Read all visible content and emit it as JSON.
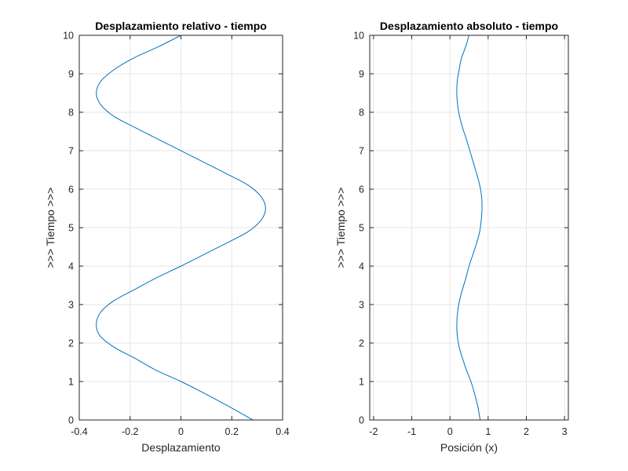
{
  "chart_data": [
    {
      "type": "line",
      "title": "Desplazamiento relativo - tiempo",
      "xlabel": "Desplazamiento",
      "ylabel": ">>> Tiempo >>>",
      "xlim": [
        -0.4,
        0.4
      ],
      "ylim": [
        0,
        10
      ],
      "xticks": [
        -0.4,
        -0.2,
        0,
        0.2,
        0.4
      ],
      "xtick_labels": [
        "-0.4",
        "-0.2",
        "0",
        "0.2",
        "0.4"
      ],
      "yticks": [
        0,
        1,
        2,
        3,
        4,
        5,
        6,
        7,
        8,
        9,
        10
      ],
      "ytick_labels": [
        "0",
        "1",
        "2",
        "3",
        "4",
        "5",
        "6",
        "7",
        "8",
        "9",
        "10"
      ],
      "grid": true,
      "line_color": "#0072BD",
      "series": [
        {
          "x": [
            0.283,
            0.189,
            0.09,
            0.0,
            -0.1,
            -0.18,
            -0.265,
            -0.32,
            -0.333,
            -0.316,
            -0.264,
            -0.18,
            -0.095,
            0.0,
            0.09,
            0.18,
            0.265,
            0.316,
            0.333,
            0.316,
            0.265,
            0.18,
            0.09,
            0.0,
            -0.09,
            -0.18,
            -0.265,
            -0.316,
            -0.333,
            -0.316,
            -0.265,
            -0.189,
            -0.09,
            0.0
          ],
          "y": [
            0.0,
            0.35,
            0.7,
            1.0,
            1.3,
            1.6,
            1.9,
            2.2,
            2.5,
            2.8,
            3.1,
            3.4,
            3.7,
            4.0,
            4.3,
            4.6,
            4.9,
            5.2,
            5.5,
            5.8,
            6.1,
            6.4,
            6.7,
            7.0,
            7.3,
            7.6,
            7.9,
            8.2,
            8.5,
            8.8,
            9.1,
            9.4,
            9.7,
            10.0
          ]
        }
      ]
    },
    {
      "type": "line",
      "title": "Desplazamiento absoluto - tiempo",
      "xlabel": "Posición (x)",
      "ylabel": ">>> Tiempo >>>",
      "xlim": [
        -2.1,
        3.1
      ],
      "ylim": [
        0,
        10
      ],
      "xticks": [
        -2,
        -1,
        0,
        1,
        2,
        3
      ],
      "xtick_labels": [
        "-2",
        "-1",
        "0",
        "1",
        "2",
        "3"
      ],
      "yticks": [
        0,
        1,
        2,
        3,
        4,
        5,
        6,
        7,
        8,
        9,
        10
      ],
      "ytick_labels": [
        "0",
        "1",
        "2",
        "3",
        "4",
        "5",
        "6",
        "7",
        "8",
        "9",
        "10"
      ],
      "grid": true,
      "line_color": "#0072BD",
      "series": [
        {
          "x": [
            0.79,
            0.73,
            0.64,
            0.55,
            0.43,
            0.33,
            0.24,
            0.19,
            0.18,
            0.2,
            0.25,
            0.33,
            0.42,
            0.5,
            0.6,
            0.7,
            0.78,
            0.82,
            0.84,
            0.83,
            0.78,
            0.7,
            0.61,
            0.52,
            0.43,
            0.33,
            0.25,
            0.2,
            0.18,
            0.19,
            0.24,
            0.3,
            0.41,
            0.5
          ],
          "y": [
            0.0,
            0.35,
            0.7,
            1.0,
            1.3,
            1.6,
            1.9,
            2.2,
            2.5,
            2.8,
            3.1,
            3.4,
            3.7,
            4.0,
            4.3,
            4.6,
            4.9,
            5.2,
            5.5,
            5.8,
            6.1,
            6.4,
            6.7,
            7.0,
            7.3,
            7.6,
            7.9,
            8.2,
            8.5,
            8.8,
            9.1,
            9.4,
            9.7,
            10.0
          ]
        }
      ]
    }
  ]
}
